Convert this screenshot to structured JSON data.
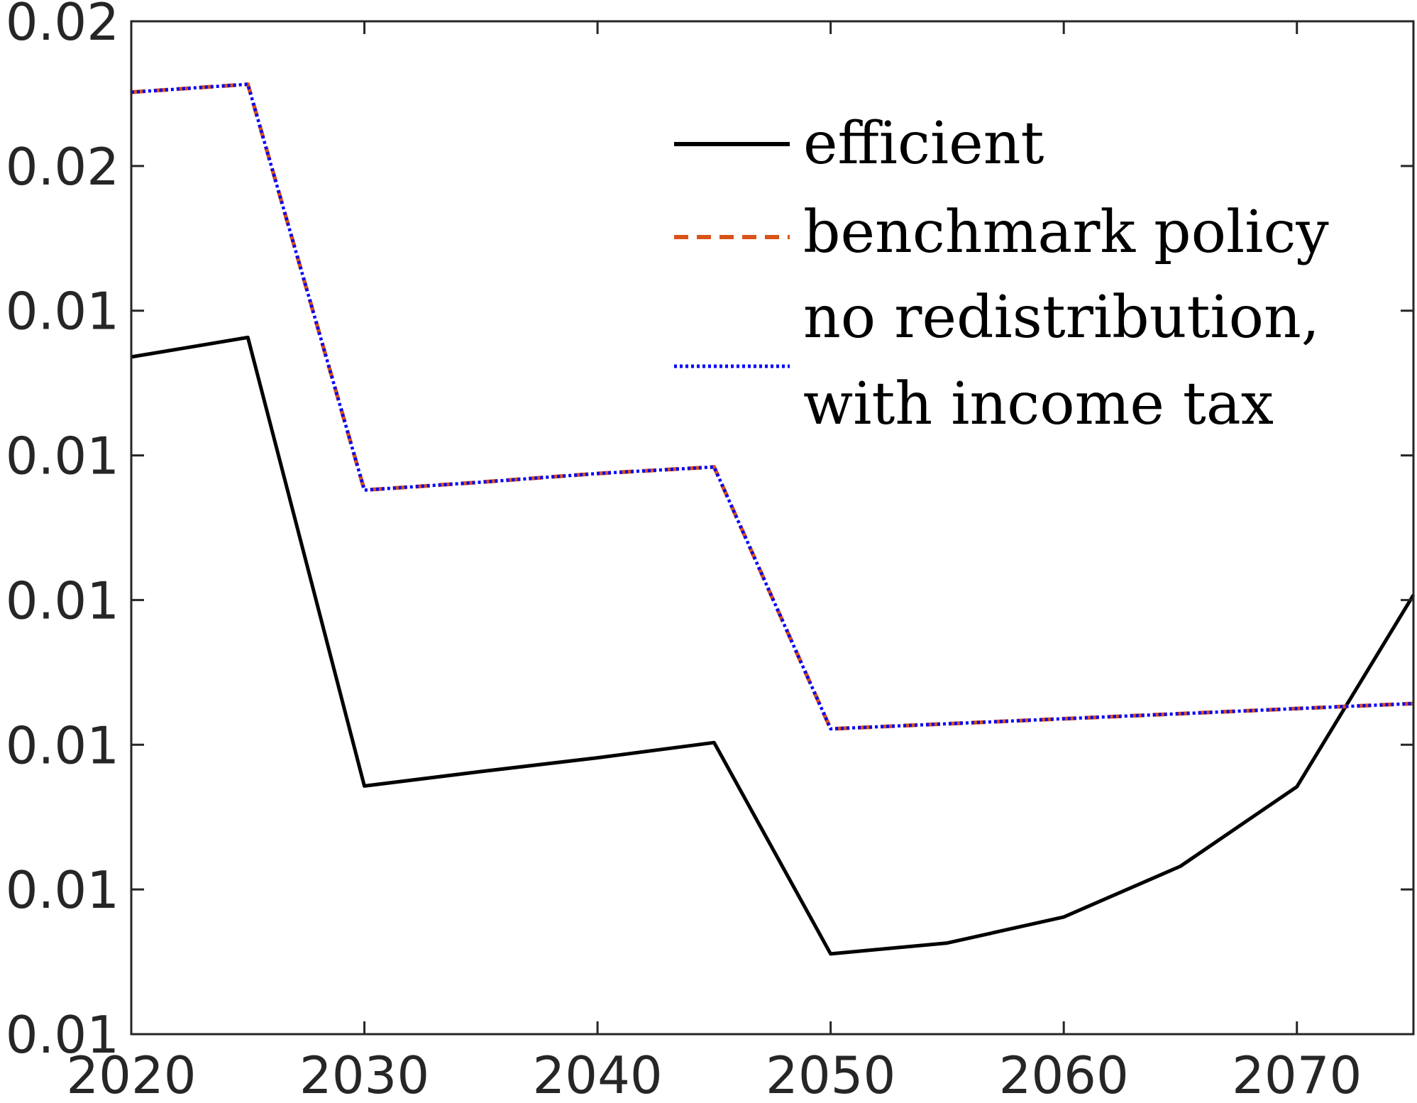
{
  "chart_data": {
    "type": "line",
    "title": "",
    "xlabel": "",
    "ylabel": "",
    "xlim": [
      2020,
      2075
    ],
    "ylim": [
      0.007,
      0.021
    ],
    "grid": false,
    "legend_position": "top-right",
    "x": [
      2020,
      2025,
      2030,
      2035,
      2040,
      2045,
      2050,
      2055,
      2060,
      2065,
      2070,
      2075
    ],
    "x_ticks": [
      2020,
      2030,
      2040,
      2050,
      2060,
      2070
    ],
    "x_tick_labels": [
      "2020",
      "2030",
      "2040",
      "2050",
      "2060",
      "2070"
    ],
    "y_ticks": [
      0.007,
      0.009,
      0.011,
      0.013,
      0.015,
      0.017,
      0.019,
      0.021
    ],
    "y_tick_labels": [
      "0.01",
      "0.01",
      "0.01",
      "0.01",
      "0.01",
      "0.01",
      "0.02",
      "0.02"
    ],
    "series": [
      {
        "name": "efficient",
        "color": "#000000",
        "style": "solid",
        "values": [
          0.01636,
          0.01663,
          0.01043,
          0.01063,
          0.01082,
          0.01103,
          0.00811,
          0.00826,
          0.00862,
          0.00932,
          0.01042,
          0.01307
        ]
      },
      {
        "name": "benchmark policy",
        "color": "#D95319",
        "style": "dashed",
        "values": [
          0.02002,
          0.02013,
          0.01452,
          0.01463,
          0.01475,
          0.01484,
          0.01122,
          0.01129,
          0.01136,
          0.01143,
          0.0115,
          0.01157
        ]
      },
      {
        "name": "no redistribution, with income tax",
        "name_lines": [
          "no redistribution,",
          "with income tax"
        ],
        "color": "#0000FF",
        "style": "dotted",
        "values": [
          0.02002,
          0.02013,
          0.01452,
          0.01463,
          0.01475,
          0.01484,
          0.01122,
          0.01129,
          0.01136,
          0.01143,
          0.0115,
          0.01157
        ]
      }
    ]
  }
}
